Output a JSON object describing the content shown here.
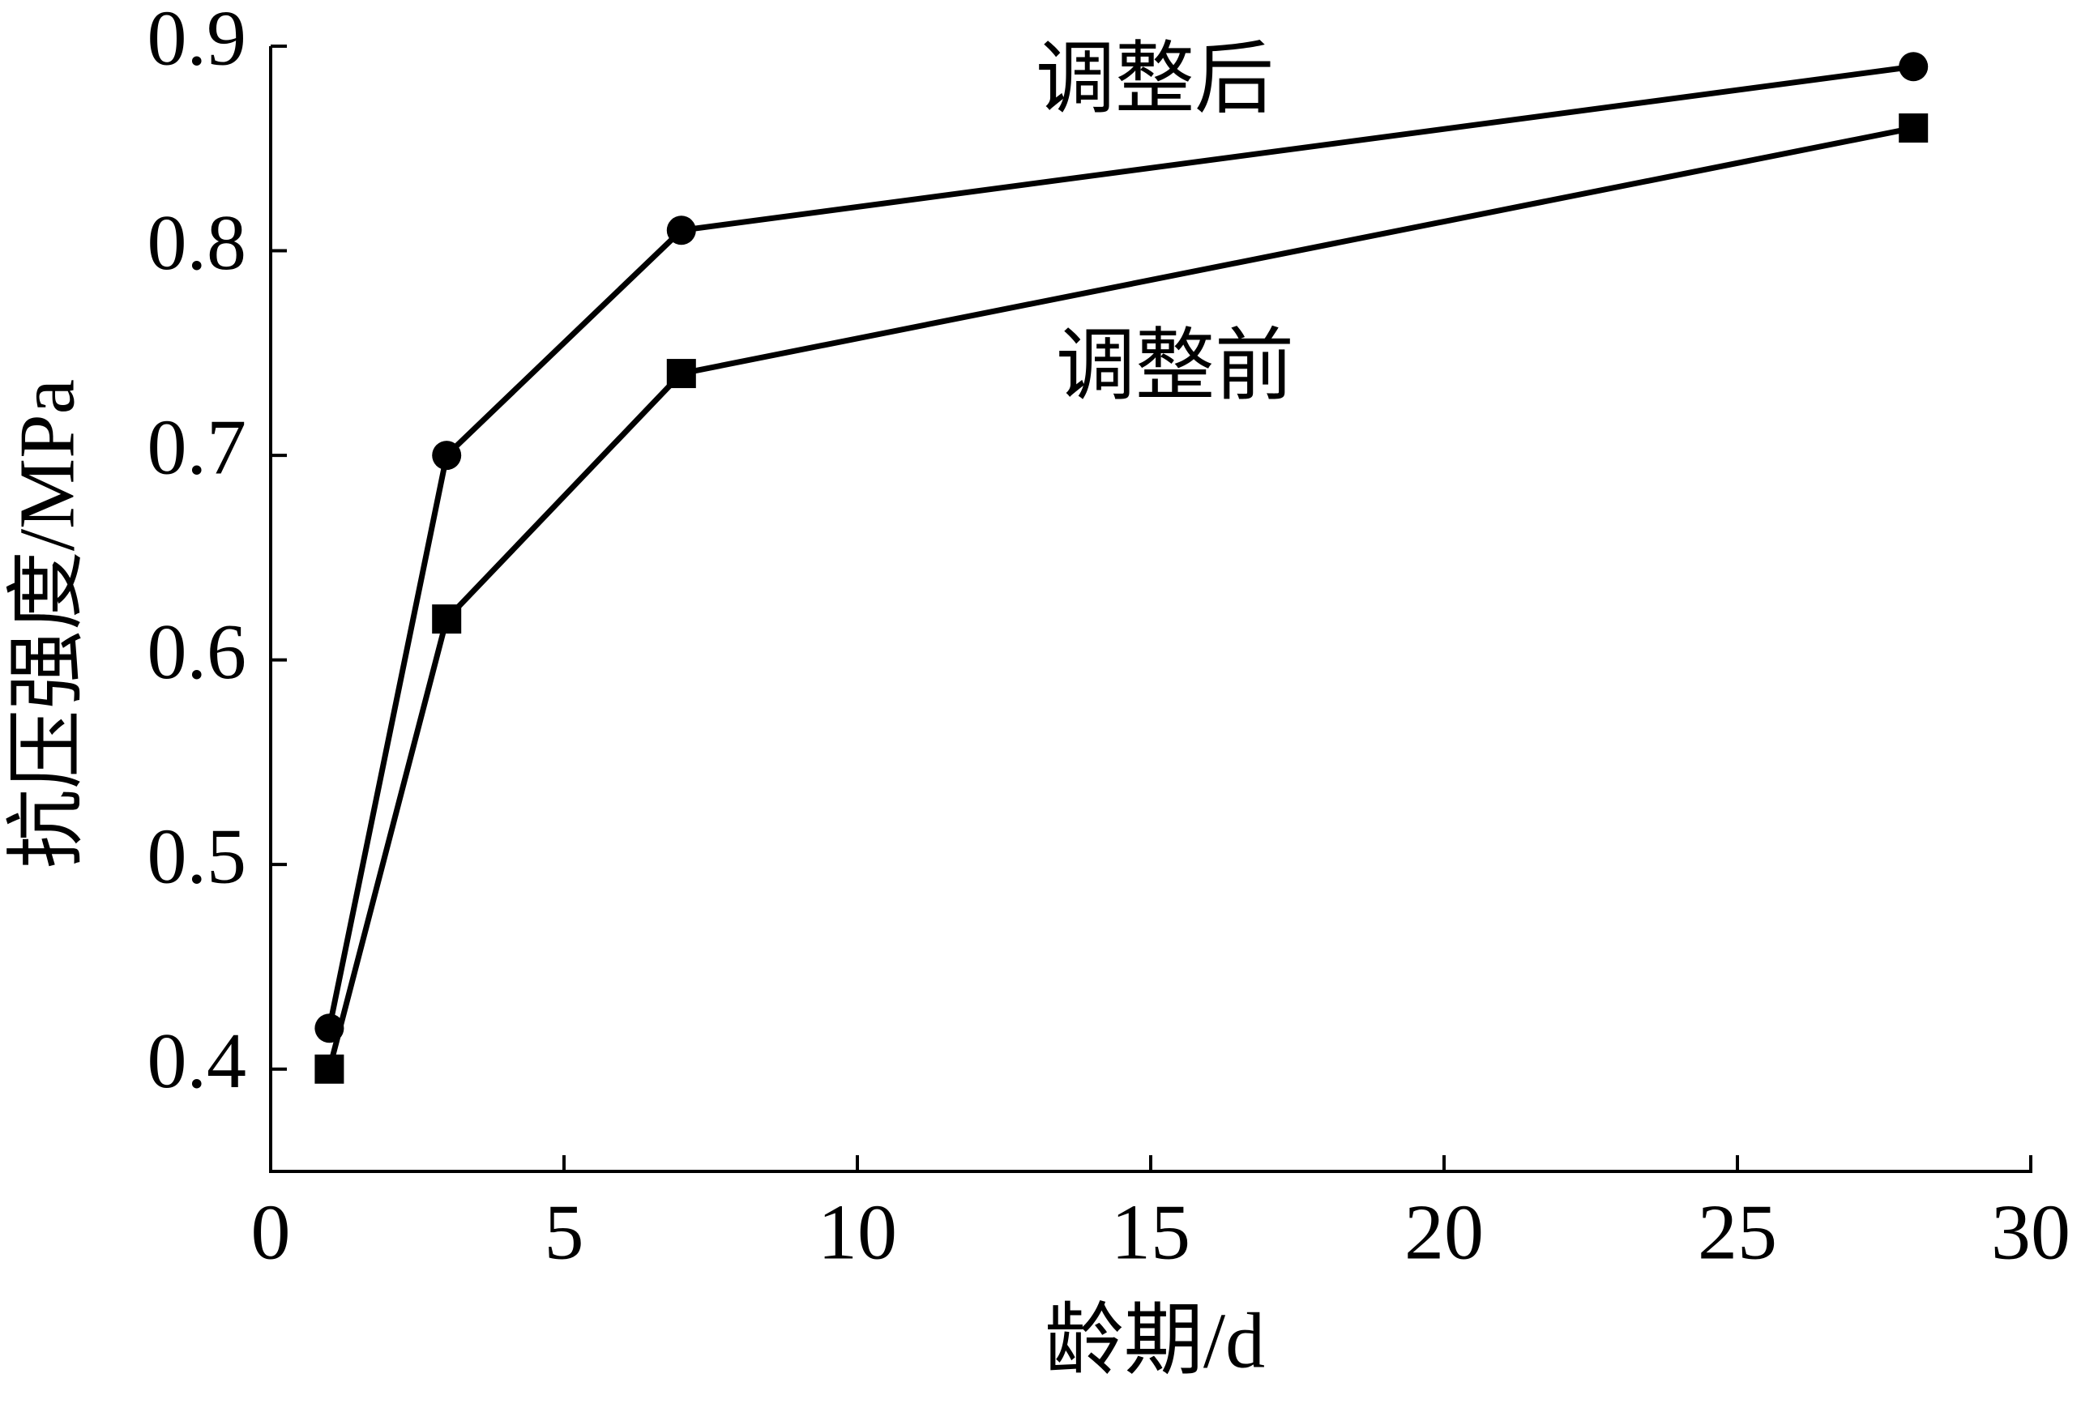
{
  "chart_data": {
    "type": "line",
    "x_label": "龄期/d",
    "y_label": "抗压强度/MPa",
    "x": [
      1,
      3,
      7,
      28
    ],
    "series": [
      {
        "name": "调整后",
        "color": "#000000",
        "marker": "circle",
        "values": [
          0.42,
          0.7,
          0.81,
          0.89
        ]
      },
      {
        "name": "调整前",
        "color": "#000000",
        "marker": "square",
        "values": [
          0.4,
          0.62,
          0.74,
          0.86
        ]
      }
    ],
    "xlim": [
      0,
      30
    ],
    "xticks": [
      0,
      5,
      10,
      15,
      20,
      25,
      30
    ],
    "ylim": [
      0.35,
      0.9
    ],
    "yticks": [
      0.4,
      0.5,
      0.6,
      0.7,
      0.8,
      0.9
    ],
    "grid": false
  }
}
